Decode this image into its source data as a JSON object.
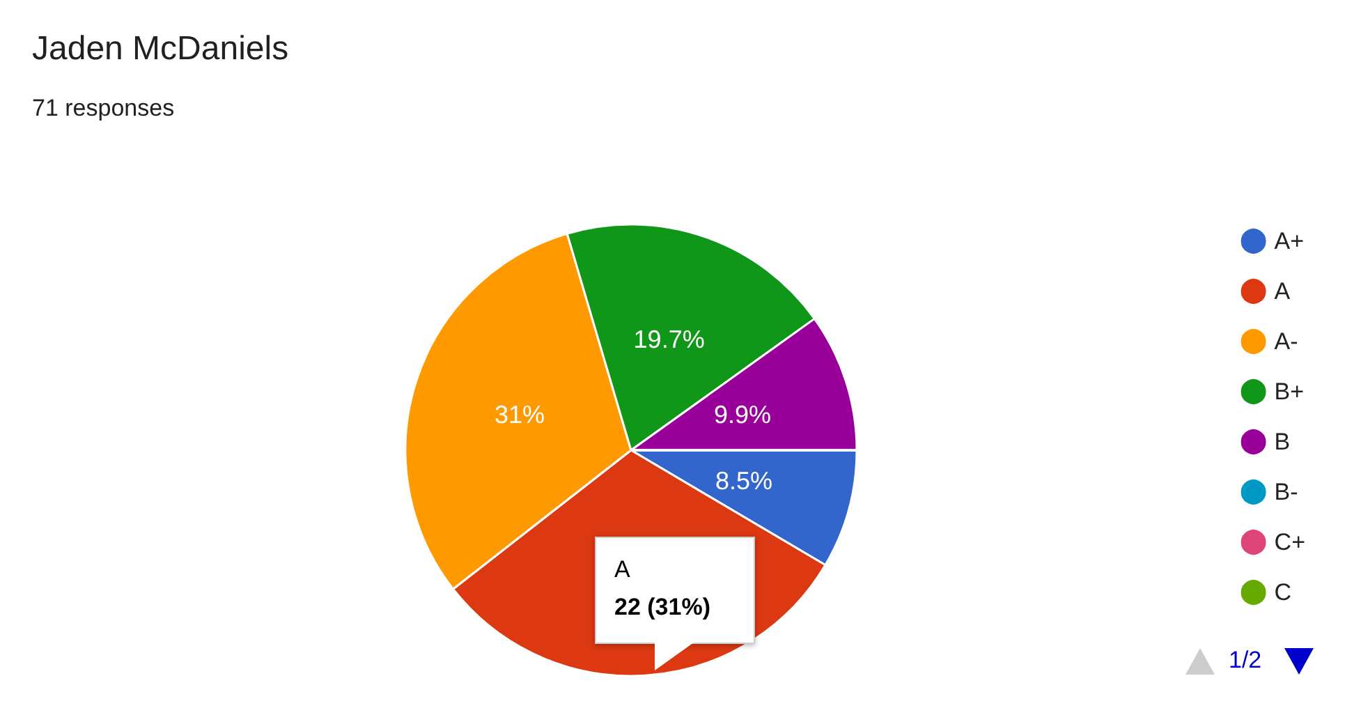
{
  "chart_data": {
    "type": "pie",
    "title": "Jaden McDaniels",
    "subtitle": "71 responses",
    "categories": [
      "A+",
      "A",
      "A-",
      "B+",
      "B",
      "B-",
      "C+",
      "C"
    ],
    "values": [
      8.5,
      31,
      31,
      19.7,
      9.9,
      0,
      0,
      0
    ],
    "value_labels": [
      "8.5%",
      null,
      "31%",
      "19.7%",
      "9.9%",
      null,
      null,
      null
    ],
    "colors": [
      "#3366cc",
      "#dc3912",
      "#ff9900",
      "#109618",
      "#990099",
      "#0099c6",
      "#dd4477",
      "#66aa00"
    ],
    "legend": "right",
    "annotations": [
      "A",
      "22 (31%)",
      "1/2"
    ]
  }
}
